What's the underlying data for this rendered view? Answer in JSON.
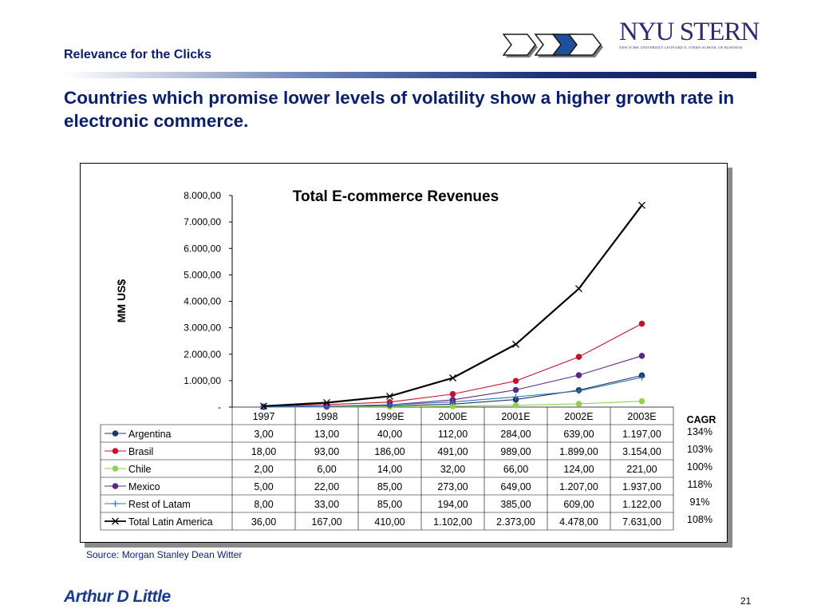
{
  "header": {
    "section": "Relevance for the Clicks",
    "headline": "Countries which promise lower levels of volatility show a higher growth rate in electronic commerce."
  },
  "logos": {
    "stern_main": "NYU STERN",
    "stern_sub": "NEW YORK UNIVERSITY LEONARD N. STERN SCHOOL OF BUSINESS",
    "adl": "Arthur D Little"
  },
  "footer": {
    "source": "Source: Morgan Stanley Dean Witter",
    "page": "21"
  },
  "colors": {
    "accent_navy": "#0a1f6b",
    "Argentina": "#1f3864",
    "Brasil": "#c8102e",
    "Chile": "#92d050",
    "Mexico": "#5b2a86",
    "Rest of Latam": "#2e75b6",
    "Total Latin America": "#000000"
  },
  "chart_data": {
    "type": "line",
    "title": "Total E-commerce Revenues",
    "ylabel": "MM US$",
    "xlabel": "",
    "ylim": [
      0,
      8000
    ],
    "y_ticks": [
      "-",
      "1.000,00",
      "2.000,00",
      "3.000,00",
      "4.000,00",
      "5.000,00",
      "6.000,00",
      "7.000,00",
      "8.000,00"
    ],
    "categories": [
      "1997",
      "1998",
      "1999E",
      "2000E",
      "2001E",
      "2002E",
      "2003E"
    ],
    "cagr_header": "CAGR",
    "series": [
      {
        "name": "Argentina",
        "marker": "circle",
        "values": [
          3,
          13,
          40,
          112,
          284,
          639,
          1197
        ],
        "labels": [
          "3,00",
          "13,00",
          "40,00",
          "112,00",
          "284,00",
          "639,00",
          "1.197,00"
        ],
        "cagr": "134%"
      },
      {
        "name": "Brasil",
        "marker": "circle",
        "values": [
          18,
          93,
          186,
          491,
          989,
          1899,
          3154
        ],
        "labels": [
          "18,00",
          "93,00",
          "186,00",
          "491,00",
          "989,00",
          "1.899,00",
          "3.154,00"
        ],
        "cagr": "103%"
      },
      {
        "name": "Chile",
        "marker": "circle",
        "values": [
          2,
          6,
          14,
          32,
          66,
          124,
          221
        ],
        "labels": [
          "2,00",
          "6,00",
          "14,00",
          "32,00",
          "66,00",
          "124,00",
          "221,00"
        ],
        "cagr": "100%"
      },
      {
        "name": "Mexico",
        "marker": "circle",
        "values": [
          5,
          22,
          85,
          273,
          649,
          1207,
          1937
        ],
        "labels": [
          "5,00",
          "22,00",
          "85,00",
          "273,00",
          "649,00",
          "1.207,00",
          "1.937,00"
        ],
        "cagr": "118%"
      },
      {
        "name": "Rest of Latam",
        "marker": "plus",
        "values": [
          8,
          33,
          85,
          194,
          385,
          609,
          1122
        ],
        "labels": [
          "8,00",
          "33,00",
          "85,00",
          "194,00",
          "385,00",
          "609,00",
          "1.122,00"
        ],
        "cagr": "91%"
      },
      {
        "name": "Total Latin America",
        "marker": "x",
        "values": [
          36,
          167,
          410,
          1102,
          2373,
          4478,
          7631
        ],
        "labels": [
          "36,00",
          "167,00",
          "410,00",
          "1.102,00",
          "2.373,00",
          "4.478,00",
          "7.631,00"
        ],
        "cagr": "108%"
      }
    ]
  }
}
